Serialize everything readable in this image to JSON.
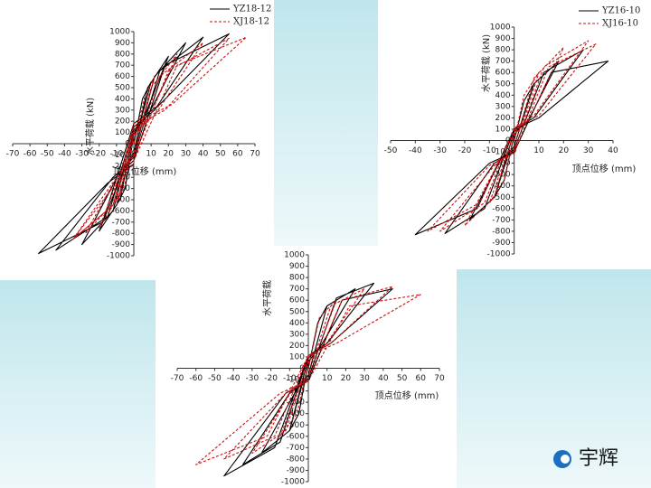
{
  "chart_data": [
    {
      "type": "line",
      "ylabel": "水平荷载 (kN)",
      "xlabel": "顶点位移 (mm)",
      "xlim": [
        -70,
        70
      ],
      "xticks": [
        -70,
        -60,
        -50,
        -40,
        -30,
        -20,
        -10,
        0,
        10,
        20,
        30,
        40,
        50,
        60,
        70
      ],
      "ylim": [
        -1000,
        1000
      ],
      "yticks": [
        -1000,
        -900,
        -800,
        -700,
        -600,
        -500,
        -400,
        -300,
        -200,
        -100,
        0,
        100,
        200,
        300,
        400,
        500,
        600,
        700,
        800,
        900,
        1000
      ],
      "legend": "upper right",
      "series": [
        {
          "name": "YZ18-12",
          "color": "#000000",
          "line_style": "solid",
          "x": [
            0,
            5,
            10,
            3,
            0,
            -5,
            -10,
            -3,
            0,
            8,
            20,
            5,
            0,
            -8,
            -20,
            -5,
            0,
            12,
            30,
            8,
            0,
            -12,
            -30,
            -8,
            0,
            15,
            40,
            12,
            0,
            -15,
            -45,
            -12,
            0,
            18,
            55,
            15,
            0,
            -18,
            -55,
            -15,
            0
          ],
          "values": [
            0,
            400,
            550,
            150,
            80,
            -400,
            -550,
            -150,
            -80,
            500,
            780,
            200,
            100,
            -500,
            -780,
            -200,
            -100,
            600,
            900,
            250,
            120,
            -600,
            -900,
            -250,
            -120,
            650,
            950,
            300,
            150,
            -650,
            -950,
            -300,
            -150,
            700,
            980,
            350,
            180,
            -700,
            -980,
            -350,
            -180
          ]
        },
        {
          "name": "XJ18-12",
          "color": "#cc1111",
          "line_style": "dashed",
          "x": [
            0,
            6,
            12,
            4,
            0,
            -5,
            -10,
            -3,
            0,
            10,
            25,
            8,
            0,
            -8,
            -20,
            -6,
            0,
            15,
            40,
            12,
            0,
            -10,
            -28,
            -8,
            0,
            20,
            55,
            18,
            0,
            -12,
            -35,
            -10,
            0,
            25,
            65,
            22,
            0,
            -12,
            -35,
            -10,
            0
          ],
          "values": [
            0,
            400,
            600,
            150,
            80,
            -350,
            -550,
            -150,
            -80,
            500,
            800,
            200,
            100,
            -450,
            -750,
            -200,
            -100,
            600,
            900,
            250,
            120,
            -500,
            -800,
            -250,
            -120,
            650,
            940,
            300,
            150,
            -550,
            -850,
            -300,
            -150,
            700,
            950,
            350,
            180,
            -550,
            -850,
            -350,
            -180
          ]
        }
      ]
    },
    {
      "type": "line",
      "ylabel": "水平荷载 (kN)",
      "xlabel": "顶点位移 (mm)",
      "xlim": [
        -50,
        40
      ],
      "xticks": [
        -50,
        -40,
        -30,
        -20,
        -10,
        0,
        10,
        20,
        30,
        40
      ],
      "ylim": [
        -1000,
        1000
      ],
      "yticks": [
        -1000,
        -900,
        -800,
        -700,
        -600,
        -500,
        -400,
        -300,
        -200,
        -100,
        0,
        100,
        200,
        300,
        400,
        500,
        600,
        700,
        800,
        900,
        1000
      ],
      "legend": "upper right",
      "series": [
        {
          "name": "YZ16-10",
          "color": "#000000",
          "line_style": "solid",
          "x": [
            0,
            4,
            8,
            2,
            0,
            -4,
            -8,
            -2,
            0,
            8,
            18,
            5,
            0,
            -8,
            -18,
            -5,
            0,
            12,
            28,
            8,
            0,
            -12,
            -28,
            -8,
            0,
            15,
            38,
            10,
            0,
            -15,
            -40,
            -10,
            0
          ],
          "values": [
            0,
            350,
            500,
            100,
            50,
            -350,
            -500,
            -100,
            -50,
            500,
            700,
            150,
            80,
            -500,
            -700,
            -150,
            -80,
            600,
            800,
            200,
            100,
            -600,
            -820,
            -200,
            -100,
            600,
            700,
            200,
            100,
            -600,
            -830,
            -200,
            -100
          ]
        },
        {
          "name": "XJ16-10",
          "color": "#cc1111",
          "line_style": "dashed",
          "x": [
            0,
            4,
            10,
            3,
            0,
            -4,
            -10,
            -3,
            0,
            8,
            20,
            6,
            0,
            -8,
            -20,
            -6,
            0,
            12,
            30,
            8,
            0,
            -12,
            -30,
            -8,
            0,
            14,
            33,
            10,
            0,
            -14,
            -35,
            -10,
            0
          ],
          "values": [
            0,
            400,
            600,
            120,
            60,
            -350,
            -550,
            -120,
            -60,
            550,
            820,
            180,
            90,
            -500,
            -750,
            -180,
            -90,
            650,
            880,
            220,
            110,
            -550,
            -800,
            -220,
            -110,
            650,
            850,
            220,
            110,
            -550,
            -800,
            -220,
            -110
          ]
        }
      ]
    },
    {
      "type": "line",
      "ylabel": "水平荷载",
      "xlabel": "顶点位移 (mm)",
      "xlim": [
        -70,
        70
      ],
      "xticks": [
        -70,
        -60,
        -50,
        -40,
        -30,
        -20,
        -10,
        0,
        10,
        20,
        30,
        40,
        50,
        60,
        70
      ],
      "ylim": [
        -1000,
        1000
      ],
      "yticks": [
        -1000,
        -900,
        -800,
        -700,
        -600,
        -500,
        -400,
        -300,
        -200,
        -100,
        0,
        100,
        200,
        300,
        400,
        500,
        600,
        700,
        800,
        900,
        1000
      ],
      "series": [
        {
          "color": "#000000",
          "line_style": "solid",
          "x": [
            0,
            5,
            10,
            3,
            0,
            -5,
            -10,
            -3,
            0,
            10,
            25,
            6,
            0,
            -10,
            -25,
            -6,
            0,
            15,
            35,
            10,
            0,
            -15,
            -35,
            -10,
            0,
            18,
            45,
            12,
            0,
            -18,
            -45,
            -12,
            0
          ],
          "values": [
            0,
            400,
            550,
            120,
            60,
            -400,
            -550,
            -120,
            -60,
            550,
            700,
            180,
            90,
            -550,
            -750,
            -180,
            -90,
            620,
            750,
            220,
            110,
            -650,
            -850,
            -220,
            -110,
            600,
            700,
            220,
            110,
            -700,
            -950,
            -220,
            -110
          ]
        },
        {
          "color": "#cc1111",
          "line_style": "dashed",
          "x": [
            0,
            6,
            15,
            4,
            0,
            -6,
            -15,
            -4,
            0,
            12,
            30,
            8,
            0,
            -12,
            -30,
            -8,
            0,
            18,
            45,
            12,
            0,
            -18,
            -45,
            -12,
            0,
            22,
            60,
            15,
            0,
            -22,
            -60,
            -15,
            0
          ],
          "values": [
            0,
            450,
            600,
            120,
            60,
            -400,
            -600,
            -120,
            -60,
            550,
            700,
            180,
            90,
            -550,
            -750,
            -180,
            -90,
            600,
            720,
            220,
            110,
            -600,
            -800,
            -220,
            -110,
            550,
            650,
            220,
            110,
            -600,
            -850,
            -220,
            -110
          ]
        }
      ]
    }
  ],
  "logo": {
    "text": "宇辉"
  }
}
